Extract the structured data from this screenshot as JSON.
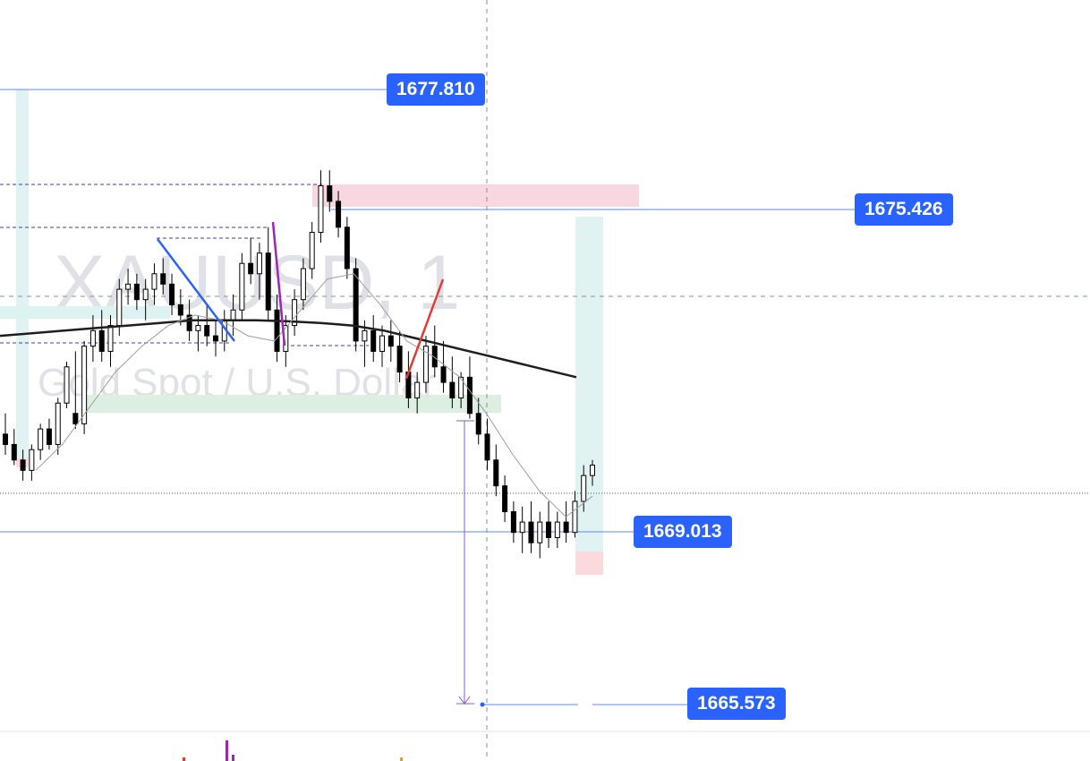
{
  "watermark": {
    "symbol": "XAUUSD, 1",
    "description": "Gold Spot / U.S. Dollar"
  },
  "price_labels": {
    "level_1": "1677.810",
    "level_2": "1675.426",
    "level_3": "1669.013",
    "level_4": "1665.573"
  },
  "colors": {
    "accent": "#2962ff",
    "candle": "#000000",
    "ma_long": "#1e1e1e",
    "ma_short": "#9e9e9e",
    "zone_sell": "#f8d7e0",
    "zone_buy": "#dcefe1",
    "target_zone": "#e0f2f1",
    "stop_zone": "#fbd9dc",
    "trend_blue": "#2962ff",
    "trend_purple": "#9c27b0",
    "trend_red": "#e53935"
  },
  "chart_data": {
    "type": "candlestick",
    "symbol": "XAUUSD",
    "interval": "1",
    "yrange": [
      1665.0,
      1678.5
    ],
    "horizontal_levels": [
      1677.81,
      1675.426,
      1669.013,
      1665.573
    ],
    "candles": [
      [
        1670.8,
        1671.2,
        1670.4,
        1670.6
      ],
      [
        1670.6,
        1670.9,
        1670.2,
        1670.3
      ],
      [
        1670.3,
        1670.5,
        1669.9,
        1670.1
      ],
      [
        1670.1,
        1670.6,
        1669.9,
        1670.5
      ],
      [
        1670.5,
        1671.0,
        1670.3,
        1670.9
      ],
      [
        1670.9,
        1671.1,
        1670.5,
        1670.6
      ],
      [
        1670.6,
        1671.5,
        1670.4,
        1671.4
      ],
      [
        1671.4,
        1672.2,
        1671.3,
        1672.1
      ],
      [
        1671.2,
        1672.4,
        1670.9,
        1671.0
      ],
      [
        1671.0,
        1672.6,
        1670.8,
        1672.5
      ],
      [
        1672.5,
        1673.1,
        1672.2,
        1672.8
      ],
      [
        1672.8,
        1673.2,
        1672.2,
        1672.4
      ],
      [
        1672.4,
        1673.1,
        1672.1,
        1672.9
      ],
      [
        1672.9,
        1673.8,
        1672.7,
        1673.6
      ],
      [
        1673.6,
        1674.0,
        1673.3,
        1673.7
      ],
      [
        1673.7,
        1673.9,
        1673.2,
        1673.4
      ],
      [
        1673.4,
        1673.8,
        1673.0,
        1673.6
      ],
      [
        1673.6,
        1674.1,
        1673.3,
        1673.9
      ],
      [
        1673.9,
        1674.2,
        1673.5,
        1673.7
      ],
      [
        1673.7,
        1673.9,
        1673.1,
        1673.3
      ],
      [
        1673.3,
        1673.6,
        1672.9,
        1673.1
      ],
      [
        1673.1,
        1673.4,
        1672.6,
        1672.8
      ],
      [
        1672.8,
        1673.1,
        1672.4,
        1672.9
      ],
      [
        1672.9,
        1673.3,
        1672.5,
        1672.7
      ],
      [
        1672.7,
        1673.0,
        1672.3,
        1672.6
      ],
      [
        1672.6,
        1673.2,
        1672.4,
        1673.0
      ],
      [
        1673.0,
        1673.5,
        1672.7,
        1673.2
      ],
      [
        1673.2,
        1674.3,
        1673.0,
        1674.1
      ],
      [
        1674.1,
        1674.6,
        1673.7,
        1673.9
      ],
      [
        1673.9,
        1674.5,
        1673.4,
        1674.3
      ],
      [
        1674.3,
        1674.8,
        1673.0,
        1673.2
      ],
      [
        1673.2,
        1673.5,
        1672.2,
        1672.4
      ],
      [
        1672.4,
        1673.1,
        1672.1,
        1672.9
      ],
      [
        1672.9,
        1673.6,
        1672.7,
        1673.4
      ],
      [
        1673.4,
        1674.2,
        1673.2,
        1674.0
      ],
      [
        1674.0,
        1674.9,
        1673.8,
        1674.7
      ],
      [
        1674.7,
        1675.9,
        1674.5,
        1675.6
      ],
      [
        1675.6,
        1675.9,
        1675.1,
        1675.3
      ],
      [
        1675.3,
        1675.5,
        1674.6,
        1674.8
      ],
      [
        1674.8,
        1675.0,
        1673.8,
        1674.0
      ],
      [
        1674.0,
        1674.2,
        1672.4,
        1672.6
      ],
      [
        1672.6,
        1673.0,
        1672.1,
        1672.8
      ],
      [
        1672.8,
        1673.1,
        1672.2,
        1672.4
      ],
      [
        1672.4,
        1672.9,
        1672.1,
        1672.7
      ],
      [
        1672.7,
        1673.0,
        1672.2,
        1672.5
      ],
      [
        1672.5,
        1672.8,
        1671.8,
        1672.0
      ],
      [
        1672.0,
        1672.4,
        1671.3,
        1671.5
      ],
      [
        1671.5,
        1672.0,
        1671.2,
        1671.8
      ],
      [
        1671.8,
        1672.7,
        1671.6,
        1672.5
      ],
      [
        1672.5,
        1672.9,
        1671.9,
        1672.1
      ],
      [
        1672.1,
        1672.6,
        1671.6,
        1671.8
      ],
      [
        1671.8,
        1672.3,
        1671.3,
        1671.5
      ],
      [
        1671.5,
        1672.0,
        1671.3,
        1671.9
      ],
      [
        1671.9,
        1672.3,
        1671.1,
        1671.2
      ],
      [
        1671.2,
        1671.5,
        1670.6,
        1670.8
      ],
      [
        1670.8,
        1671.1,
        1670.1,
        1670.3
      ],
      [
        1670.3,
        1670.6,
        1669.6,
        1669.8
      ],
      [
        1669.8,
        1670.0,
        1669.1,
        1669.3
      ],
      [
        1669.3,
        1669.5,
        1668.7,
        1668.9
      ],
      [
        1668.9,
        1669.4,
        1668.5,
        1669.1
      ],
      [
        1669.1,
        1669.5,
        1668.5,
        1668.7
      ],
      [
        1668.7,
        1669.3,
        1668.4,
        1669.1
      ],
      [
        1669.1,
        1669.5,
        1668.6,
        1668.8
      ],
      [
        1668.8,
        1669.3,
        1668.6,
        1669.1
      ],
      [
        1669.1,
        1669.5,
        1668.7,
        1668.9
      ],
      [
        1668.9,
        1669.7,
        1668.8,
        1669.5
      ],
      [
        1669.5,
        1670.2,
        1669.3,
        1670.0
      ],
      [
        1670.0,
        1670.3,
        1669.8,
        1670.2
      ]
    ],
    "moving_averages": [
      {
        "values": [
          1672.7,
          1672.75,
          1672.8,
          1672.85,
          1672.9,
          1672.95,
          1673.0,
          1673.0,
          1673.0,
          1672.98,
          1672.95,
          1672.9,
          1672.8,
          1672.65,
          1672.5,
          1672.35,
          1672.2,
          1672.05,
          1671.9
        ]
      },
      {
        "values": [
          1670.1,
          1670.6,
          1671.3,
          1672.0,
          1672.5,
          1672.9,
          1673.1,
          1673.0,
          1672.7,
          1672.6,
          1673.2,
          1673.8,
          1673.9,
          1673.3,
          1672.6,
          1672.3,
          1671.9,
          1671.2,
          1670.4,
          1669.7,
          1669.2,
          1669.6
        ]
      }
    ],
    "zones": [
      {
        "name": "sell-zone",
        "ymin": 1675.4,
        "ymax": 1675.9
      },
      {
        "name": "buy-zone",
        "ymin": 1670.9,
        "ymax": 1671.3
      },
      {
        "name": "target-zone",
        "ymin": 1669.2,
        "ymax": 1675.3
      },
      {
        "name": "stop-zone",
        "ymin": 1668.5,
        "ymax": 1668.9
      }
    ],
    "trend_lines": [
      {
        "name": "blue",
        "from": 1673.9,
        "to": 1672.1
      },
      {
        "name": "purple",
        "from": 1674.8,
        "to": 1672.2
      },
      {
        "name": "red",
        "from": 1670.9,
        "to": 1673.2
      }
    ]
  }
}
